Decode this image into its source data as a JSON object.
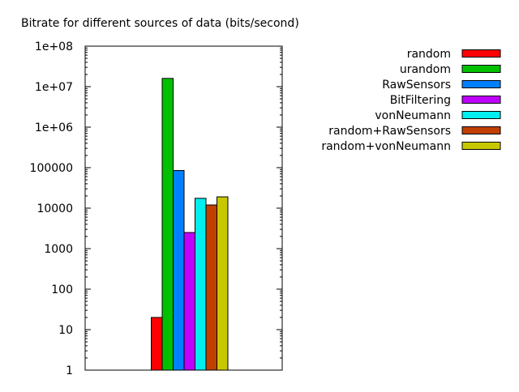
{
  "chart_data": {
    "type": "bar",
    "title": "Bitrate for different sources of data (bits/second)",
    "xlabel": "",
    "ylabel": "",
    "yscale": "log",
    "ylim": [
      1,
      100000000
    ],
    "yticks": [
      1,
      10,
      100,
      1000,
      10000,
      100000,
      1000000,
      10000000,
      100000000
    ],
    "ytick_labels": [
      "1",
      "10",
      "100",
      "1000",
      "10000",
      "100000",
      "1e+06",
      "1e+07",
      "1e+08"
    ],
    "grid": false,
    "legend_position": "right",
    "series": [
      {
        "name": "random",
        "value": 20,
        "color": "#ff0000"
      },
      {
        "name": "urandom",
        "value": 16000000,
        "color": "#00c000"
      },
      {
        "name": "RawSensors",
        "value": 85000,
        "color": "#0080ff"
      },
      {
        "name": "BitFiltering",
        "value": 2500,
        "color": "#c000ff"
      },
      {
        "name": "vonNeumann",
        "value": 17500,
        "color": "#00eeee"
      },
      {
        "name": "random+RawSensors",
        "value": 12000,
        "color": "#c04000"
      },
      {
        "name": "random+vonNeumann",
        "value": 19000,
        "color": "#c8c800"
      }
    ]
  }
}
